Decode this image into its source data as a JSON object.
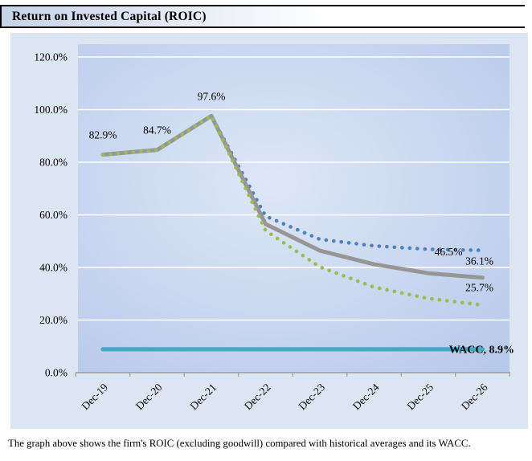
{
  "header": {
    "title": "Return on Invested Capital (ROIC)"
  },
  "caption": "The graph above shows the firm's ROIC (excluding goodwill) compared with historical averages and its WACC.",
  "colors": {
    "chart_background": "#dce6f2",
    "plot_gradient_center": "#dde7f6",
    "plot_gradient_mid": "#c7d5ef",
    "plot_gradient_edge": "#b3c6e8",
    "gridline": "#ffffff",
    "axis": "#9b9b9b",
    "series_blue": "#4f81bd",
    "series_gray": "#969696",
    "series_green": "#9bbb59",
    "series_teal": "#45a9c1",
    "label_text": "#000000"
  },
  "chart_data": {
    "type": "line",
    "title": "Return on Invested Capital (ROIC)",
    "categories": [
      "Dec-19",
      "Dec-20",
      "Dec-21",
      "Dec-22",
      "Dec-23",
      "Dec-24",
      "Dec-25",
      "Dec-26"
    ],
    "ylim": [
      0,
      120
    ],
    "grid": "horizontal-white",
    "legend": "none",
    "y_ticks": [
      {
        "label": "120.0%",
        "value": 120
      },
      {
        "label": "100.0%",
        "value": 100
      },
      {
        "label": "80.0%",
        "value": 80
      },
      {
        "label": "60.0%",
        "value": 60
      },
      {
        "label": "40.0%",
        "value": 40
      },
      {
        "label": "20.0%",
        "value": 20
      },
      {
        "label": "0.0%",
        "value": 0
      }
    ],
    "series": [
      {
        "id": "wacc-solid-teal",
        "style": "solid",
        "color": "#45a9c1",
        "values": [
          8.9,
          8.9,
          8.9,
          8.9,
          8.9,
          8.9,
          8.9,
          8.9
        ],
        "end_label": "WACC, 8.9%"
      },
      {
        "id": "dotted-blue",
        "style": "dotted",
        "color": "#4f81bd",
        "values": [
          82.9,
          84.7,
          97.6,
          59.5,
          50.7,
          48.2,
          46.9,
          46.5
        ],
        "end_label": "46.5%"
      },
      {
        "id": "solid-gray",
        "style": "solid",
        "color": "#969696",
        "values": [
          82.9,
          84.7,
          97.6,
          56.5,
          46.4,
          41.2,
          37.8,
          36.1
        ],
        "end_label": "36.1%"
      },
      {
        "id": "dotted-green",
        "style": "dotted",
        "color": "#9bbb59",
        "values": [
          82.9,
          84.7,
          97.6,
          54.0,
          40.2,
          32.5,
          28.2,
          25.7
        ],
        "end_label": "25.7%"
      }
    ],
    "point_labels": [
      {
        "text": "82.9%",
        "category": "Dec-19"
      },
      {
        "text": "84.7%",
        "category": "Dec-20"
      },
      {
        "text": "97.6%",
        "category": "Dec-21"
      }
    ]
  }
}
